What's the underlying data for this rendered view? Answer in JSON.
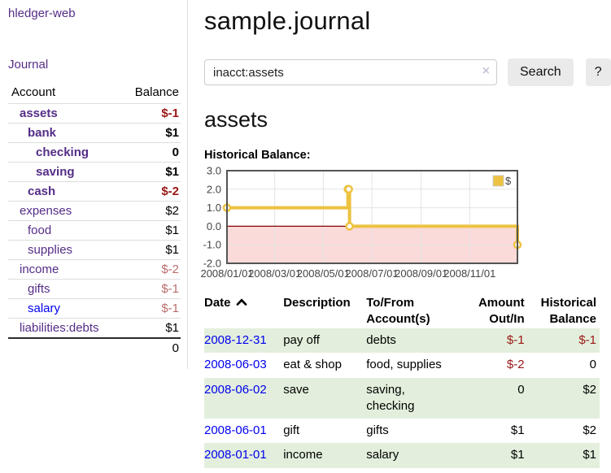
{
  "sidebar": {
    "brand": "hledger-web",
    "nav": {
      "journal": "Journal"
    },
    "accounts": {
      "col_account": "Account",
      "col_balance": "Balance",
      "rows": [
        {
          "name": "assets",
          "indent": 1,
          "bold": true,
          "balance": "$-1",
          "negative": true
        },
        {
          "name": "bank",
          "indent": 2,
          "bold": true,
          "balance": "$1",
          "negative": false
        },
        {
          "name": "checking",
          "indent": 3,
          "bold": true,
          "balance": "0",
          "negative": false
        },
        {
          "name": "saving",
          "indent": 3,
          "bold": true,
          "balance": "$1",
          "negative": false
        },
        {
          "name": "cash",
          "indent": 2,
          "bold": true,
          "balance": "$-2",
          "negative": true
        },
        {
          "name": "expenses",
          "indent": 1,
          "bold": false,
          "balance": "$2",
          "negative": false
        },
        {
          "name": "food",
          "indent": 2,
          "bold": false,
          "balance": "$1",
          "negative": false
        },
        {
          "name": "supplies",
          "indent": 2,
          "bold": false,
          "balance": "$1",
          "negative": false
        },
        {
          "name": "income",
          "indent": 1,
          "bold": false,
          "balance": "$-2",
          "negative": true
        },
        {
          "name": "gifts",
          "indent": 2,
          "bold": false,
          "balance": "$-1",
          "negative": true
        },
        {
          "name": "salary",
          "indent": 2,
          "bold": false,
          "balance": "$-1",
          "negative": true,
          "link_style": "unvisited"
        },
        {
          "name": "liabilities:debts",
          "indent": 1,
          "bold": false,
          "balance": "$1",
          "negative": false
        }
      ],
      "total": "0"
    }
  },
  "main": {
    "title": "sample.journal",
    "search": {
      "value": "inacct:assets",
      "clear_icon": "×",
      "button": "Search",
      "help": "?"
    },
    "account_heading": "assets",
    "chart_title": "Historical Balance:"
  },
  "chart_data": {
    "type": "line",
    "style": "step",
    "title": "Historical Balance",
    "series": [
      {
        "name": "$",
        "color": "#edc240",
        "points": [
          [
            "2008-01-01",
            1.0
          ],
          [
            "2008-06-01",
            2.0
          ],
          [
            "2008-06-02",
            2.0
          ],
          [
            "2008-06-03",
            0.0
          ],
          [
            "2008-12-31",
            -1.0
          ]
        ]
      }
    ],
    "x_range": [
      "2008-01-01",
      "2008-12-31"
    ],
    "x_ticks": [
      "2008/01/01",
      "2008/03/01",
      "2008/05/01",
      "2008/07/01",
      "2008/09/01",
      "2008/11/01"
    ],
    "y_ticks": [
      3.0,
      2.0,
      1.0,
      0.0,
      -1.0,
      -2.0
    ],
    "ylim": [
      -2.0,
      3.0
    ],
    "legend": {
      "label": "$",
      "position": "top-right"
    },
    "grid": true,
    "colors": {
      "line": "#edc240",
      "marker_fill": "#ffffff",
      "negative_region": "#fbdada",
      "zero_line": "#8b0000",
      "gridline": "#e3e3e3",
      "border": "#545454",
      "tick_label": "#444444",
      "legend_border": "#cccccc"
    }
  },
  "register": {
    "columns": [
      {
        "label": "Date",
        "sort_icon": "chevron-up-icon"
      },
      {
        "label": "Description"
      },
      {
        "label": "To/From\nAccount(s)"
      },
      {
        "label": "Amount\nOut/In"
      },
      {
        "label": "Historical\nBalance"
      }
    ],
    "row_stripe_color": "#e3efdc",
    "rows": [
      {
        "date": "2008-12-31",
        "description": "pay off",
        "accounts": "debts",
        "amount": "$-1",
        "balance": "$-1"
      },
      {
        "date": "2008-06-03",
        "description": "eat & shop",
        "accounts": "food, supplies",
        "amount": "$-2",
        "balance": "0"
      },
      {
        "date": "2008-06-02",
        "description": "save",
        "accounts": "saving,\nchecking",
        "amount": "0",
        "balance": "$2"
      },
      {
        "date": "2008-06-01",
        "description": "gift",
        "accounts": "gifts",
        "amount": "$1",
        "balance": "$2"
      },
      {
        "date": "2008-01-01",
        "description": "income",
        "accounts": "salary",
        "amount": "$1",
        "balance": "$1"
      }
    ]
  }
}
